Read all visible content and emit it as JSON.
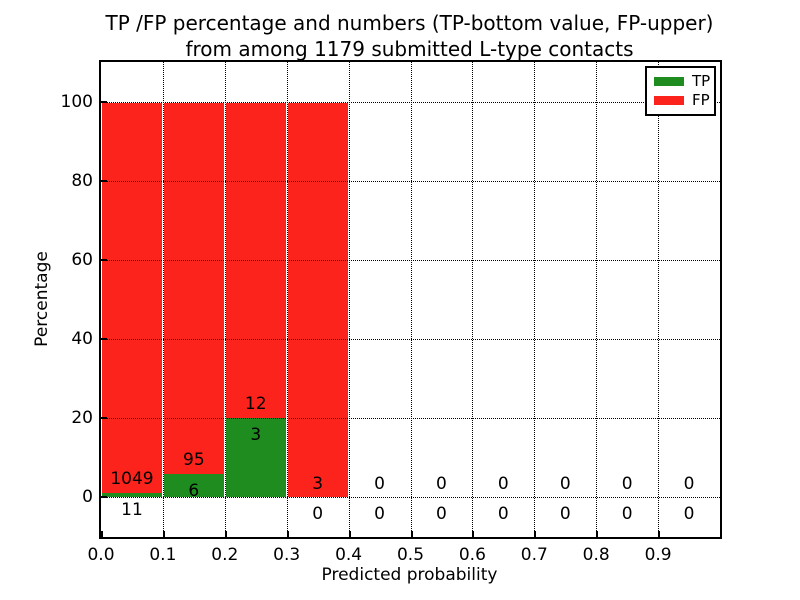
{
  "header": {
    "line1": "TP /FP percentage and numbers (TP-bottom value, FP-upper)",
    "line2": "from among 1179 submitted L-type contacts"
  },
  "chart_data": {
    "type": "bar",
    "stacked": true,
    "title": "TP /FP percentage and numbers (TP-bottom value, FP-upper) from among 1179 submitted L-type contacts",
    "xlabel": "Predicted probability",
    "ylabel": "Percentage",
    "xlim": [
      0.0,
      1.0
    ],
    "ylim": [
      -10,
      110
    ],
    "grid": true,
    "x_tick_labels": [
      "0.0",
      "0.1",
      "0.2",
      "0.3",
      "0.4",
      "0.5",
      "0.6",
      "0.7",
      "0.8",
      "0.9"
    ],
    "y_ticks": [
      0,
      20,
      40,
      60,
      80,
      100
    ],
    "total_submitted": 1179,
    "bins": [
      {
        "range": "0.0-0.1",
        "tp": 11,
        "fp": 1049,
        "tp_pct": 1.04,
        "fp_pct": 98.96
      },
      {
        "range": "0.1-0.2",
        "tp": 6,
        "fp": 95,
        "tp_pct": 5.94,
        "fp_pct": 94.06
      },
      {
        "range": "0.2-0.3",
        "tp": 3,
        "fp": 12,
        "tp_pct": 20.0,
        "fp_pct": 80.0
      },
      {
        "range": "0.3-0.4",
        "tp": 0,
        "fp": 3,
        "tp_pct": 0.0,
        "fp_pct": 100.0
      },
      {
        "range": "0.4-0.5",
        "tp": 0,
        "fp": 0,
        "tp_pct": 0.0,
        "fp_pct": 0.0
      },
      {
        "range": "0.5-0.6",
        "tp": 0,
        "fp": 0,
        "tp_pct": 0.0,
        "fp_pct": 0.0
      },
      {
        "range": "0.6-0.7",
        "tp": 0,
        "fp": 0,
        "tp_pct": 0.0,
        "fp_pct": 0.0
      },
      {
        "range": "0.7-0.8",
        "tp": 0,
        "fp": 0,
        "tp_pct": 0.0,
        "fp_pct": 0.0
      },
      {
        "range": "0.8-0.9",
        "tp": 0,
        "fp": 0,
        "tp_pct": 0.0,
        "fp_pct": 0.0
      },
      {
        "range": "0.9-1.0",
        "tp": 0,
        "fp": 0,
        "tp_pct": 0.0,
        "fp_pct": 0.0
      }
    ],
    "series": [
      {
        "name": "TP",
        "values_pct": [
          1.04,
          5.94,
          20.0,
          0,
          0,
          0,
          0,
          0,
          0,
          0
        ]
      },
      {
        "name": "FP",
        "values_pct": [
          98.96,
          94.06,
          80.0,
          100.0,
          0,
          0,
          0,
          0,
          0,
          0
        ]
      }
    ],
    "legend": [
      {
        "label": "TP",
        "color": "#1f8c1f"
      },
      {
        "label": "FP",
        "color": "#fb231c"
      }
    ],
    "colors": {
      "tp": "#1f8c1f",
      "fp": "#fb231c"
    },
    "legend_position": "upper right"
  }
}
